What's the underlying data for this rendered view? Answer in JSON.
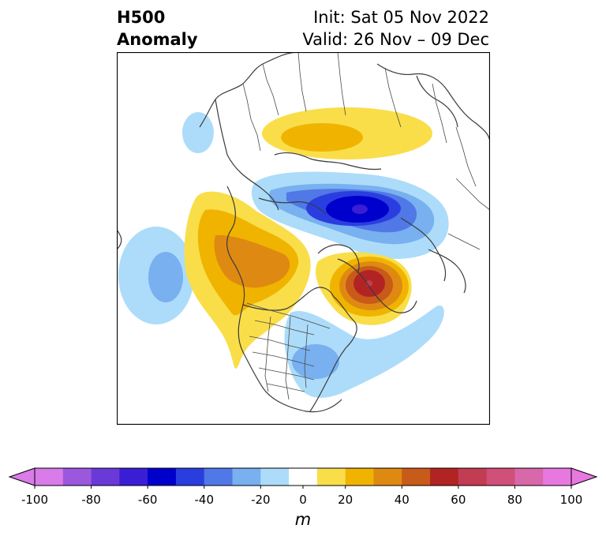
{
  "header": {
    "title_line1": "H500",
    "title_line2": "Anomaly",
    "init": "Init: Sat 05 Nov 2022",
    "valid": "Valid: 26 Nov – 09 Dec"
  },
  "colorbar": {
    "ticks": [
      "-100",
      "-80",
      "-60",
      "-40",
      "-20",
      "0",
      "20",
      "40",
      "60",
      "80",
      "100"
    ],
    "levels": [
      -100,
      -90,
      -80,
      -70,
      -60,
      -50,
      -40,
      -30,
      -20,
      -10,
      10,
      20,
      30,
      40,
      50,
      60,
      70,
      80,
      90,
      100
    ],
    "colors": [
      "#d97be8",
      "#9b58de",
      "#6a3ad8",
      "#3a1ed6",
      "#0000cc",
      "#2a3ee0",
      "#5078e6",
      "#78b0f0",
      "#acdcfa",
      "#ffffff",
      "#f9de4a",
      "#f0b400",
      "#de8a12",
      "#c85a1a",
      "#b22424",
      "#c23c52",
      "#d0507a",
      "#d868aa",
      "#e878e0"
    ],
    "unit": "m",
    "extend": "both"
  },
  "map": {
    "projection": "polar stereographic",
    "anomalies": [
      {
        "region": "Arctic / Siberia",
        "sign": "negative",
        "peak_m": -70
      },
      {
        "region": "North Siberia coast",
        "sign": "positive",
        "peak_m": 30
      },
      {
        "region": "Greenland / North Atlantic",
        "sign": "positive",
        "peak_m": 60
      },
      {
        "region": "Alaska / Western Canada",
        "sign": "positive",
        "peak_m": 40
      },
      {
        "region": "North Pacific",
        "sign": "negative",
        "peak_m": -30
      },
      {
        "region": "Eastern US",
        "sign": "negative",
        "peak_m": -30
      },
      {
        "region": "Central Atlantic",
        "sign": "negative",
        "peak_m": -20
      }
    ]
  }
}
